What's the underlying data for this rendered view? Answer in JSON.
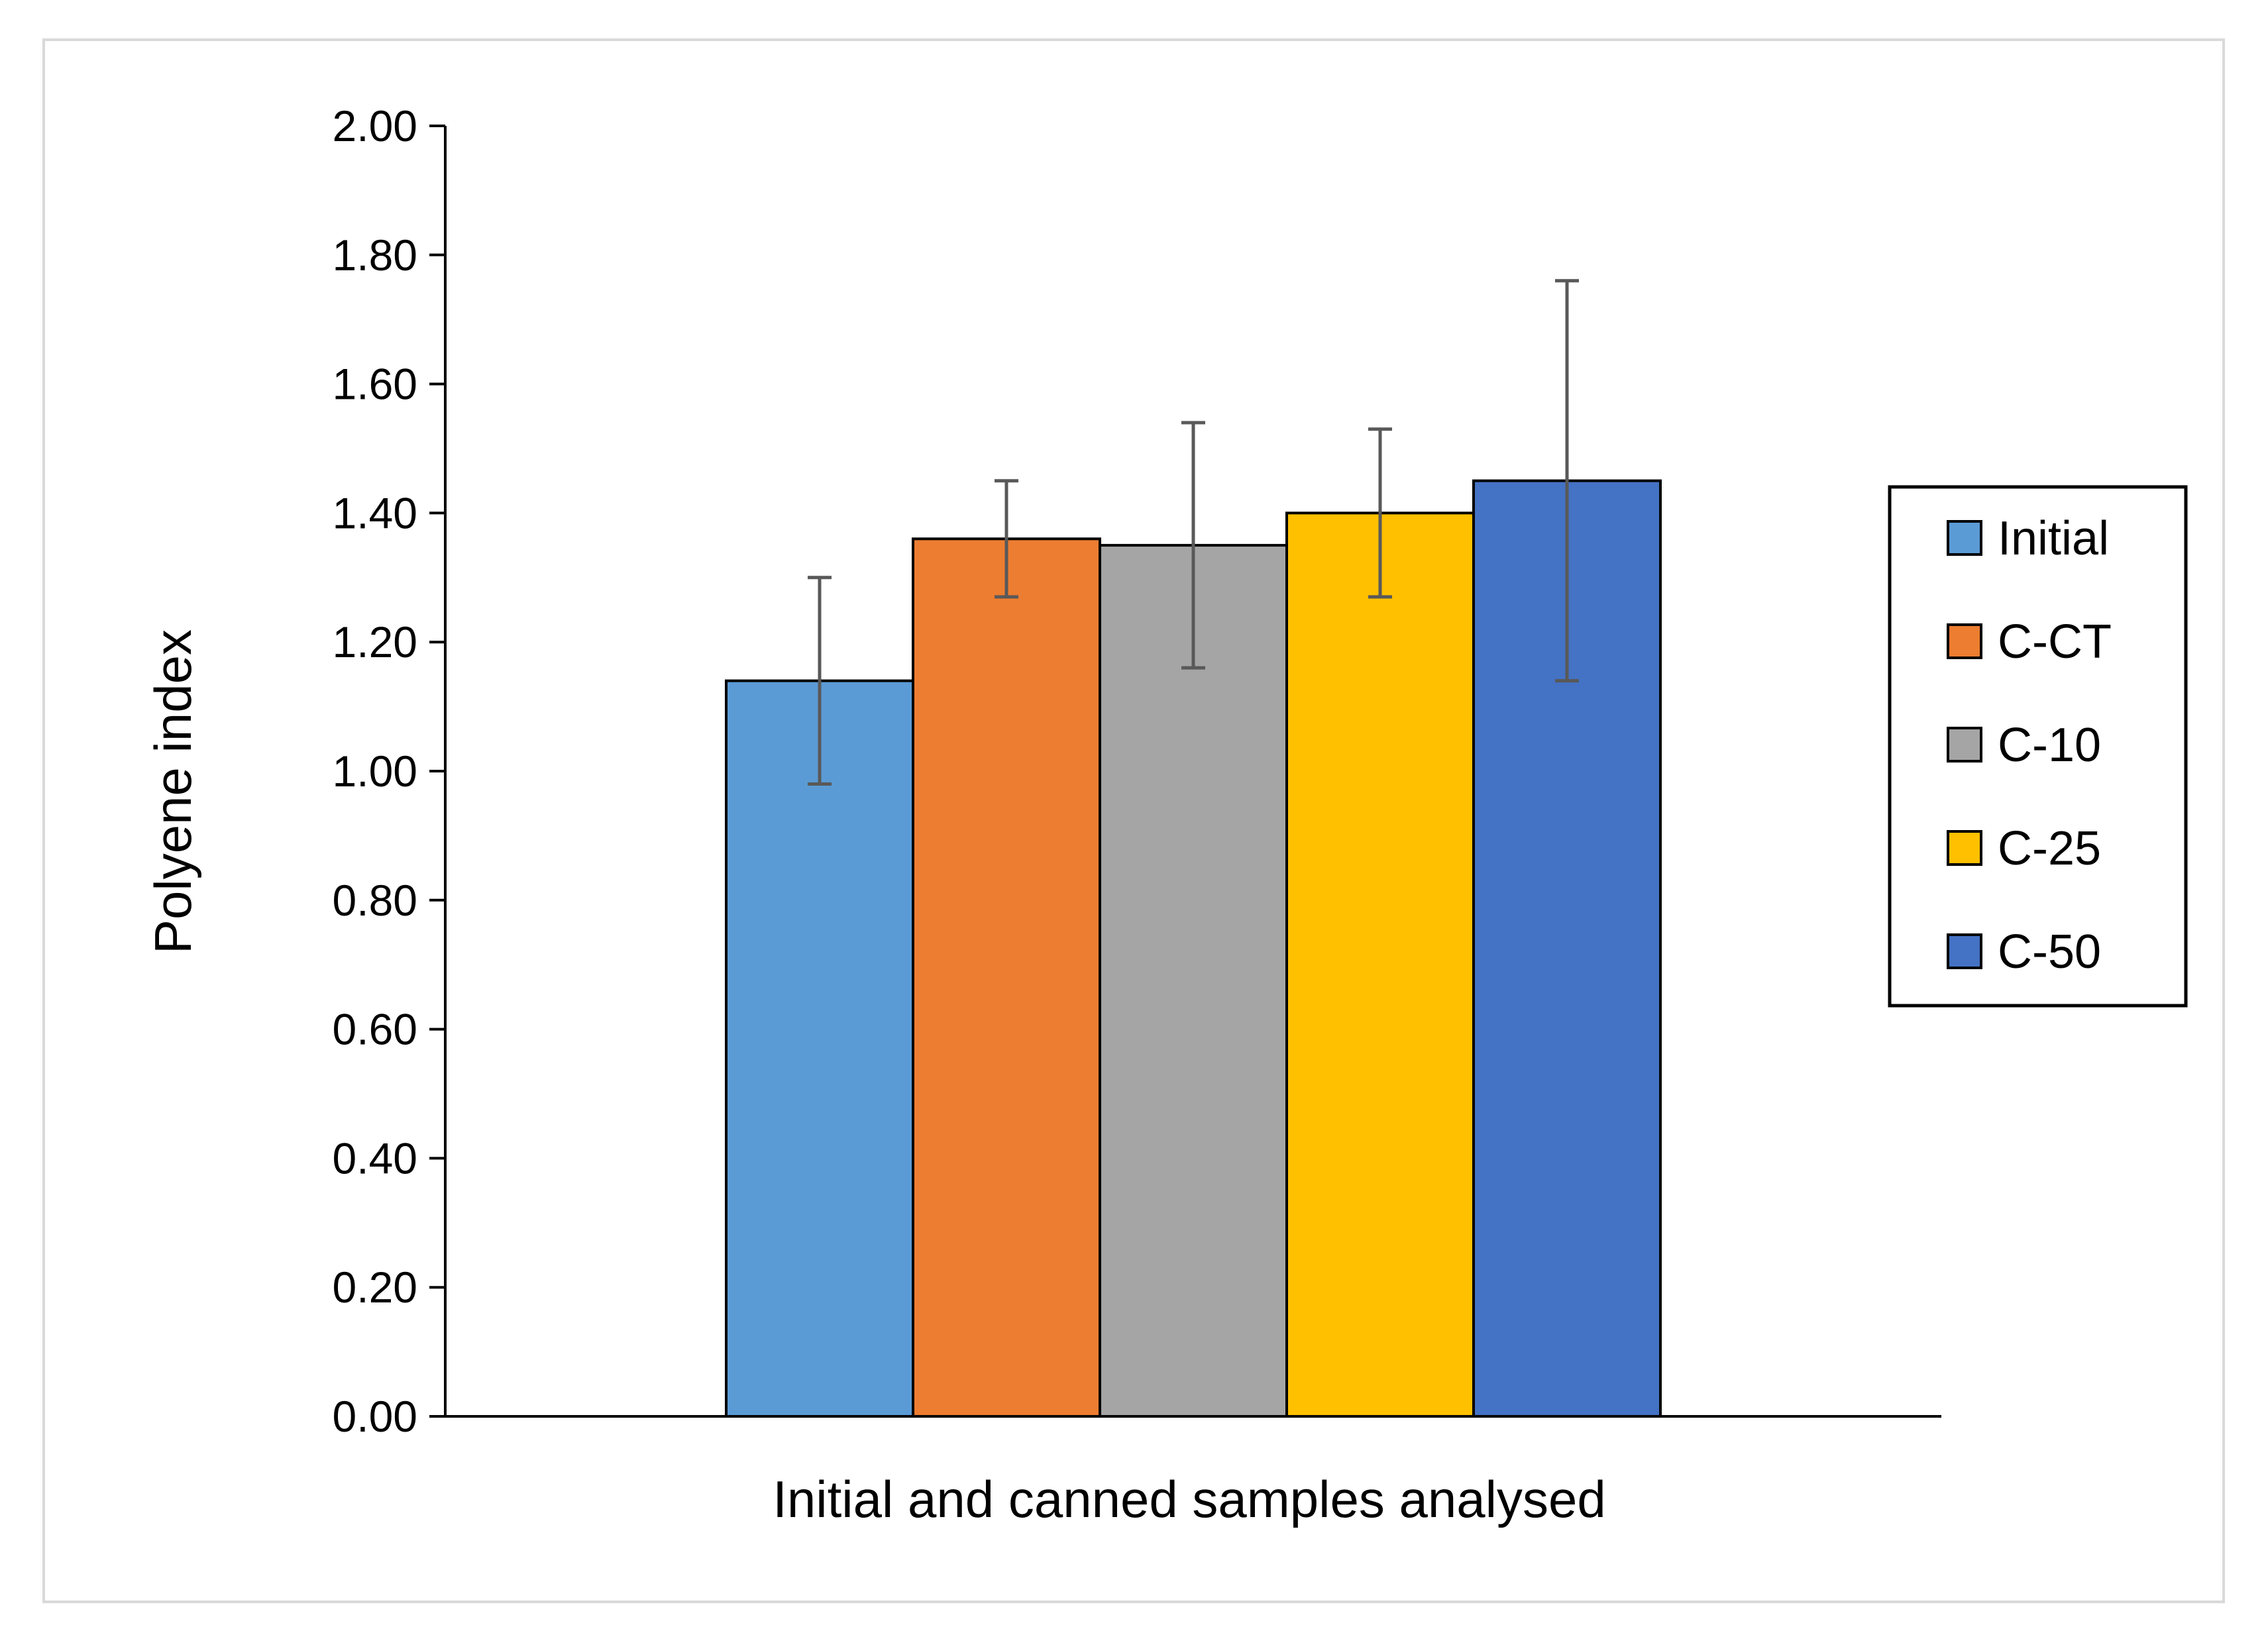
{
  "chart_data": {
    "type": "bar",
    "title": "",
    "xlabel": "Initial and canned samples analysed",
    "ylabel": "Polyene index",
    "ylim": [
      0,
      2
    ],
    "yticks": [
      "0.00",
      "0.20",
      "0.40",
      "0.60",
      "0.80",
      "1.00",
      "1.20",
      "1.40",
      "1.60",
      "1.80",
      "2.00"
    ],
    "grid": false,
    "legend_position": "right",
    "series": [
      {
        "name": "Initial",
        "value": 1.14,
        "error": 0.16,
        "color": "#5b9bd5"
      },
      {
        "name": "C-CT",
        "value": 1.36,
        "error": 0.09,
        "color": "#ed7d31"
      },
      {
        "name": "C-10",
        "value": 1.35,
        "error": 0.19,
        "color": "#a5a5a5"
      },
      {
        "name": "C-25",
        "value": 1.4,
        "error": 0.13,
        "color": "#ffc000"
      },
      {
        "name": "C-50",
        "value": 1.45,
        "error": 0.31,
        "color": "#4472c4"
      }
    ]
  }
}
